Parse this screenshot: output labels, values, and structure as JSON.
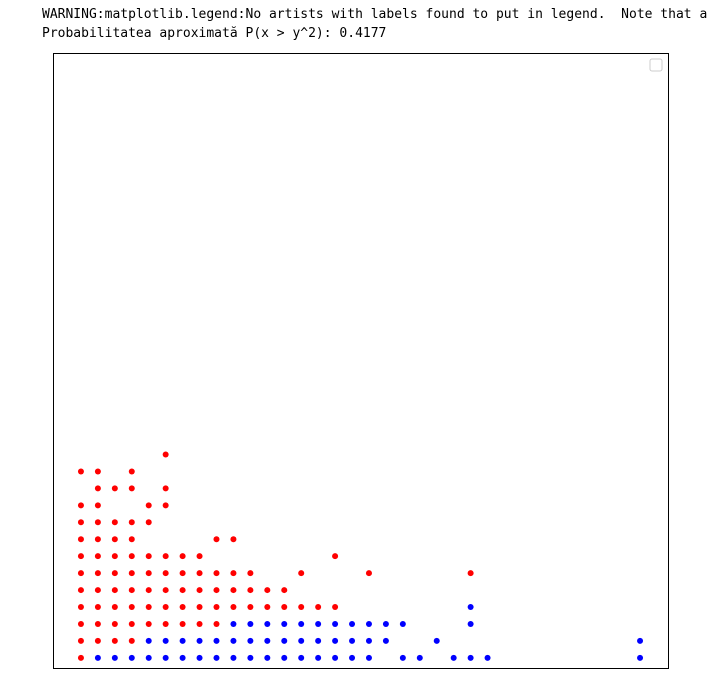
{
  "console": [
    "WARNING:matplotlib.legend:No artists with labels found to put in legend.  Note that a",
    "Probabilitatea aproximată P(x > y^2): 0.4177"
  ],
  "chart_data": {
    "type": "scatter",
    "xlim": [
      -1.65,
      34.65
    ],
    "ylim": [
      -0.6,
      35.7
    ],
    "legend": "upper right",
    "series": [
      {
        "color": "#ff0000",
        "x": [
          0,
          0,
          1,
          2,
          3,
          0,
          1,
          2,
          3,
          4,
          5,
          6,
          7,
          8,
          0,
          1,
          2,
          3,
          4,
          5,
          6,
          7,
          8,
          9,
          10,
          11,
          12,
          13,
          14,
          15,
          0,
          1,
          2,
          3,
          4,
          5,
          6,
          7,
          8,
          9,
          10,
          11,
          12,
          0,
          1,
          2,
          3,
          4,
          5,
          6,
          7,
          8,
          9,
          10,
          13,
          17,
          23,
          0,
          1,
          2,
          3,
          4,
          5,
          6,
          7,
          15,
          0,
          1,
          2,
          3,
          8,
          9,
          0,
          1,
          2,
          3,
          4,
          0,
          1,
          4,
          5,
          1,
          2,
          3,
          5,
          0,
          1,
          3,
          5
        ],
        "values": [
          0,
          1,
          1,
          1,
          1,
          2,
          2,
          2,
          2,
          2,
          2,
          2,
          2,
          2,
          3,
          3,
          3,
          3,
          3,
          3,
          3,
          3,
          3,
          3,
          3,
          3,
          3,
          3,
          3,
          3,
          4,
          4,
          4,
          4,
          4,
          4,
          4,
          4,
          4,
          4,
          4,
          4,
          4,
          5,
          5,
          5,
          5,
          5,
          5,
          5,
          5,
          5,
          5,
          5,
          5,
          5,
          5,
          6,
          6,
          6,
          6,
          6,
          6,
          6,
          6,
          6,
          7,
          7,
          7,
          7,
          7,
          7,
          8,
          8,
          8,
          8,
          8,
          9,
          9,
          9,
          9,
          10,
          10,
          10,
          10,
          11,
          11,
          11,
          12
        ]
      },
      {
        "color": "#0000ff",
        "x": [
          1,
          2,
          3,
          4,
          5,
          6,
          7,
          8,
          9,
          10,
          11,
          12,
          13,
          14,
          15,
          16,
          17,
          19,
          20,
          22,
          23,
          24,
          33,
          4,
          5,
          6,
          7,
          8,
          9,
          10,
          11,
          12,
          13,
          14,
          15,
          16,
          17,
          18,
          21,
          33,
          9,
          10,
          11,
          12,
          13,
          14,
          15,
          16,
          17,
          18,
          19,
          23,
          23
        ],
        "values": [
          0,
          0,
          0,
          0,
          0,
          0,
          0,
          0,
          0,
          0,
          0,
          0,
          0,
          0,
          0,
          0,
          0,
          0,
          0,
          0,
          0,
          0,
          0,
          1,
          1,
          1,
          1,
          1,
          1,
          1,
          1,
          1,
          1,
          1,
          1,
          1,
          1,
          1,
          1,
          1,
          2,
          2,
          2,
          2,
          2,
          2,
          2,
          2,
          2,
          2,
          2,
          2,
          3
        ]
      }
    ]
  }
}
